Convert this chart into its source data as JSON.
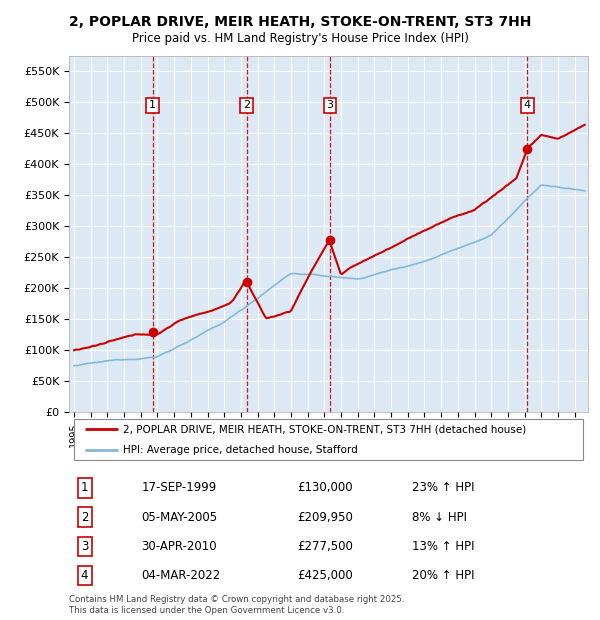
{
  "title": "2, POPLAR DRIVE, MEIR HEATH, STOKE-ON-TRENT, ST3 7HH",
  "subtitle": "Price paid vs. HM Land Registry's House Price Index (HPI)",
  "ylabel_ticks": [
    "£0",
    "£50K",
    "£100K",
    "£150K",
    "£200K",
    "£250K",
    "£300K",
    "£350K",
    "£400K",
    "£450K",
    "£500K",
    "£550K"
  ],
  "ytick_vals": [
    0,
    50000,
    100000,
    150000,
    200000,
    250000,
    300000,
    350000,
    400000,
    450000,
    500000,
    550000
  ],
  "ylim": [
    0,
    575000
  ],
  "xlim_start": 1994.7,
  "xlim_end": 2025.8,
  "bg_color": "#dce9f5",
  "grid_color": "#ffffff",
  "sale_markers": [
    {
      "label": "1",
      "date": 1999.71,
      "price": 130000
    },
    {
      "label": "2",
      "date": 2005.34,
      "price": 209950
    },
    {
      "label": "3",
      "date": 2010.33,
      "price": 277500
    },
    {
      "label": "4",
      "date": 2022.17,
      "price": 425000
    }
  ],
  "legend_red": "2, POPLAR DRIVE, MEIR HEATH, STOKE-ON-TRENT, ST3 7HH (detached house)",
  "legend_blue": "HPI: Average price, detached house, Stafford",
  "table_rows": [
    {
      "num": "1",
      "date": "17-SEP-1999",
      "price": "£130,000",
      "pct": "23% ↑ HPI"
    },
    {
      "num": "2",
      "date": "05-MAY-2005",
      "price": "£209,950",
      "pct": "8% ↓ HPI"
    },
    {
      "num": "3",
      "date": "30-APR-2010",
      "price": "£277,500",
      "pct": "13% ↑ HPI"
    },
    {
      "num": "4",
      "date": "04-MAR-2022",
      "price": "£425,000",
      "pct": "20% ↑ HPI"
    }
  ],
  "footer": "Contains HM Land Registry data © Crown copyright and database right 2025.\nThis data is licensed under the Open Government Licence v3.0.",
  "red_color": "#cc0000",
  "blue_color": "#85b8d8",
  "marker_ybox": 495000
}
